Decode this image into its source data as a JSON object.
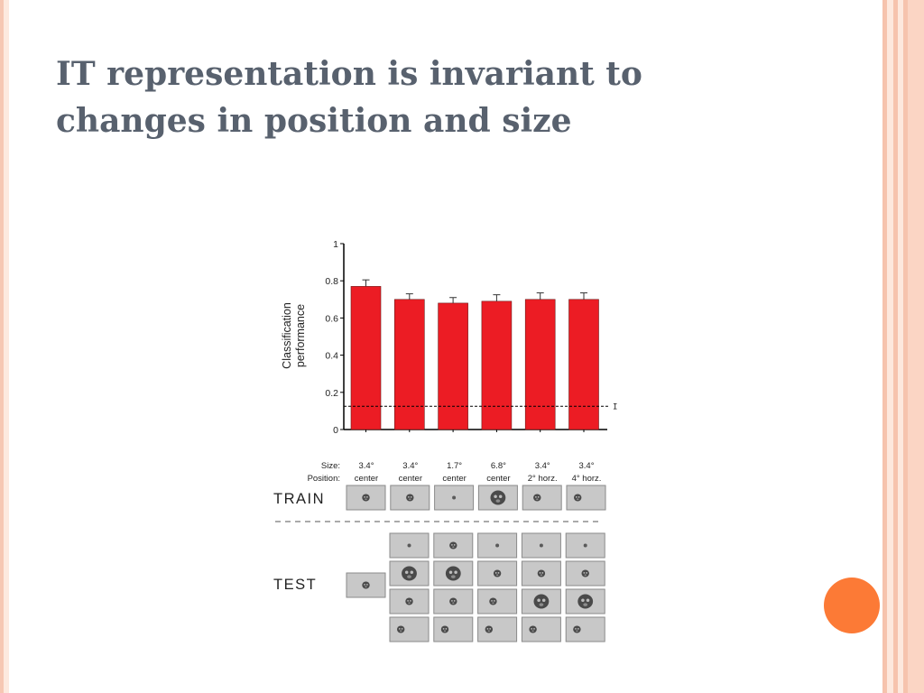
{
  "slide": {
    "title_line1": "IT representation is invariant to",
    "title_line2": "changes in position and size"
  },
  "colors": {
    "bar": "#ec1c24",
    "accent_circle": "#fc7a36",
    "title": "#58616e",
    "thumb_bg": "#c8c8c8"
  },
  "chart_data": {
    "type": "bar",
    "ylabel": [
      "Classification",
      "performance"
    ],
    "yticks": [
      "0",
      "0.2",
      "0.4",
      "0.6",
      "0.8",
      "1"
    ],
    "ylim": [
      0,
      1
    ],
    "chance_level": 0.125,
    "chance_label": "I",
    "values": [
      0.77,
      0.7,
      0.68,
      0.69,
      0.7,
      0.7
    ],
    "errors": [
      0.035,
      0.03,
      0.03,
      0.035,
      0.035,
      0.035
    ],
    "grid": false
  },
  "conditions": {
    "size_label": "Size:",
    "position_label": "Position:",
    "sizes": [
      "3.4°",
      "3.4°",
      "1.7°",
      "6.8°",
      "3.4°",
      "3.4°"
    ],
    "positions": [
      "center",
      "center",
      "center",
      "center",
      "2° horz.",
      "4° horz."
    ]
  },
  "train": {
    "label": "TRAIN",
    "thumbs": [
      {
        "size": "small",
        "offset": 0
      },
      {
        "size": "small",
        "offset": 0
      },
      {
        "size": "tiny",
        "offset": 0
      },
      {
        "size": "large",
        "offset": 0
      },
      {
        "size": "small",
        "offset": -0.35
      },
      {
        "size": "small",
        "offset": -0.6
      }
    ]
  },
  "test": {
    "label": "TEST",
    "thumb": {
      "size": "small",
      "offset": 0
    },
    "grid": [
      [
        {
          "size": "tiny",
          "offset": 0
        },
        {
          "size": "small",
          "offset": 0
        },
        {
          "size": "tiny",
          "offset": 0
        },
        {
          "size": "tiny",
          "offset": 0
        },
        {
          "size": "tiny",
          "offset": 0
        }
      ],
      [
        {
          "size": "large",
          "offset": 0
        },
        {
          "size": "large",
          "offset": 0
        },
        {
          "size": "small",
          "offset": 0
        },
        {
          "size": "small",
          "offset": 0
        },
        {
          "size": "small",
          "offset": 0
        }
      ],
      [
        {
          "size": "small",
          "offset": 0
        },
        {
          "size": "small",
          "offset": 0
        },
        {
          "size": "small",
          "offset": -0.3
        },
        {
          "size": "large",
          "offset": 0
        },
        {
          "size": "large",
          "offset": 0
        }
      ],
      [
        {
          "size": "small",
          "offset": -0.6
        },
        {
          "size": "small",
          "offset": -0.6
        },
        {
          "size": "small",
          "offset": -0.6
        },
        {
          "size": "small",
          "offset": -0.6
        },
        {
          "size": "small",
          "offset": -0.6
        }
      ]
    ]
  }
}
